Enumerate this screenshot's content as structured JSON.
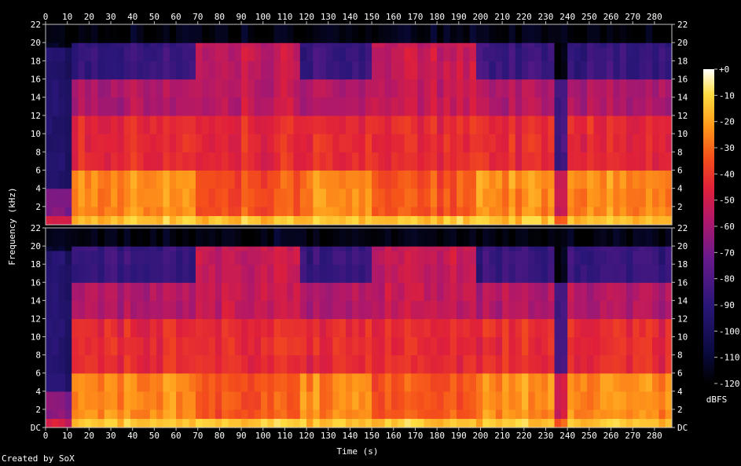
{
  "chart_data": {
    "type": "heatmap",
    "title": "",
    "xlabel": "Time (s)",
    "ylabel": "Frequency (kHz)",
    "x_ticks": [
      "0",
      "10",
      "20",
      "30",
      "40",
      "50",
      "60",
      "70",
      "80",
      "90",
      "100",
      "110",
      "120",
      "130",
      "140",
      "150",
      "160",
      "170",
      "180",
      "190",
      "200",
      "210",
      "220",
      "230",
      "240",
      "250",
      "260",
      "270",
      "280"
    ],
    "x_range": [
      0,
      288
    ],
    "channels": [
      {
        "y_ticks": [
          "22",
          "20",
          "18",
          "16",
          "14",
          "12",
          "10",
          "8",
          "6",
          "4",
          "2"
        ]
      },
      {
        "y_ticks": [
          "22",
          "20",
          "18",
          "16",
          "14",
          "12",
          "10",
          "8",
          "6",
          "4",
          "2",
          "DC"
        ]
      }
    ],
    "y_range_khz": [
      0,
      22
    ],
    "colorbar": {
      "label": "dBFS",
      "ticks": [
        "+0",
        "-10",
        "-20",
        "-30",
        "-40",
        "-50",
        "-60",
        "-70",
        "-80",
        "-90",
        "-100",
        "-110",
        "-120"
      ],
      "range": [
        -120,
        0
      ]
    },
    "segments": [
      {
        "t0": 0,
        "t1": 13,
        "state": "quiet-intro"
      },
      {
        "t0": 13,
        "t1": 70,
        "state": "moderate"
      },
      {
        "t0": 70,
        "t1": 117,
        "state": "loud"
      },
      {
        "t0": 117,
        "t1": 150,
        "state": "moderate"
      },
      {
        "t0": 150,
        "t1": 197,
        "state": "loud"
      },
      {
        "t0": 197,
        "t1": 235,
        "state": "moderate"
      },
      {
        "t0": 235,
        "t1": 240,
        "state": "dip"
      },
      {
        "t0": 240,
        "t1": 288,
        "state": "moderate"
      }
    ],
    "grid": false,
    "legend": "colorbar-right"
  },
  "footer": {
    "credit": "Created by SoX"
  },
  "colors": {
    "background": "#000000",
    "text": "#ffffff",
    "axis": "#c0c0c0"
  }
}
